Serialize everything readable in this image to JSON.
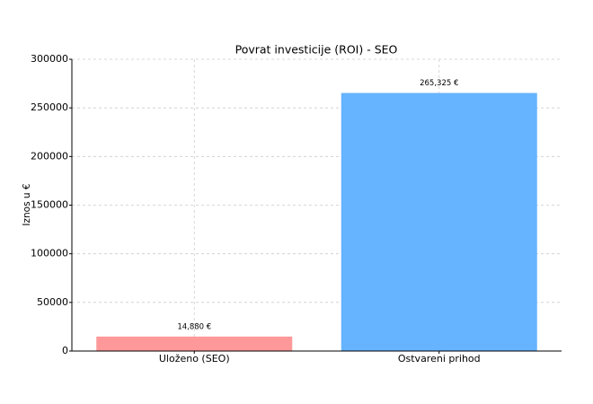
{
  "chart_data": {
    "type": "bar",
    "title": "Povrat investicije (ROI) - SEO",
    "y_label": "Iznos u €",
    "categories": [
      "Uloženo (SEO)",
      "Ostvareni prihod"
    ],
    "values": [
      14880,
      265325
    ],
    "value_labels": [
      "14,880 €",
      "265,325 €"
    ],
    "colors": [
      "#ff9999",
      "#66b3ff"
    ],
    "ylim": [
      0,
      300000
    ],
    "yticks": [
      0,
      50000,
      100000,
      150000,
      200000,
      250000,
      300000
    ],
    "grid": true
  }
}
